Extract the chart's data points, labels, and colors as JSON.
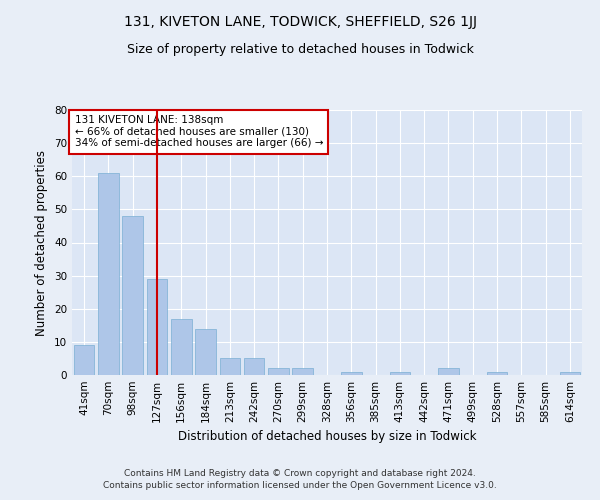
{
  "title": "131, KIVETON LANE, TODWICK, SHEFFIELD, S26 1JJ",
  "subtitle": "Size of property relative to detached houses in Todwick",
  "xlabel": "Distribution of detached houses by size in Todwick",
  "ylabel": "Number of detached properties",
  "footer_line1": "Contains HM Land Registry data © Crown copyright and database right 2024.",
  "footer_line2": "Contains public sector information licensed under the Open Government Licence v3.0.",
  "categories": [
    "41sqm",
    "70sqm",
    "98sqm",
    "127sqm",
    "156sqm",
    "184sqm",
    "213sqm",
    "242sqm",
    "270sqm",
    "299sqm",
    "328sqm",
    "356sqm",
    "385sqm",
    "413sqm",
    "442sqm",
    "471sqm",
    "499sqm",
    "528sqm",
    "557sqm",
    "585sqm",
    "614sqm"
  ],
  "values": [
    9,
    61,
    48,
    29,
    17,
    14,
    5,
    5,
    2,
    2,
    0,
    1,
    0,
    1,
    0,
    2,
    0,
    1,
    0,
    0,
    1
  ],
  "bar_color": "#aec6e8",
  "bar_edge_color": "#7aafd4",
  "vline_index": 3,
  "vline_color": "#cc0000",
  "annotation_line1": "131 KIVETON LANE: 138sqm",
  "annotation_line2": "← 66% of detached houses are smaller (130)",
  "annotation_line3": "34% of semi-detached houses are larger (66) →",
  "annotation_box_color": "#cc0000",
  "ylim": [
    0,
    80
  ],
  "yticks": [
    0,
    10,
    20,
    30,
    40,
    50,
    60,
    70,
    80
  ],
  "bg_color": "#e8eef7",
  "plot_bg_color": "#dce6f5",
  "grid_color": "#ffffff",
  "title_fontsize": 10,
  "subtitle_fontsize": 9,
  "label_fontsize": 8.5,
  "tick_fontsize": 7.5,
  "footer_fontsize": 6.5,
  "annot_fontsize": 7.5
}
